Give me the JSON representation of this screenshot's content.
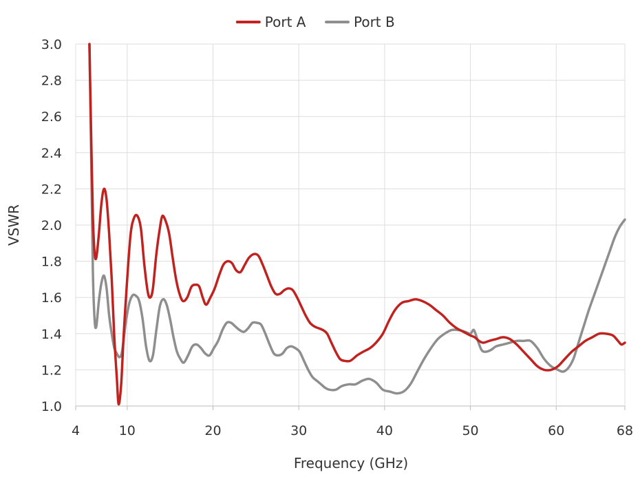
{
  "chart_data": {
    "type": "line",
    "title": "",
    "xlabel": "Frequency (GHz)",
    "ylabel": "VSWR",
    "xlim": [
      4,
      68
    ],
    "ylim": [
      1.0,
      3.0
    ],
    "x_ticks": [
      4,
      10,
      20,
      30,
      40,
      50,
      60,
      68
    ],
    "x_tick_labels": [
      "4",
      "10",
      "20",
      "30",
      "40",
      "50",
      "60",
      "68"
    ],
    "y_ticks": [
      1.0,
      1.2,
      1.4,
      1.6,
      1.8,
      2.0,
      2.2,
      2.4,
      2.6,
      2.8,
      3.0
    ],
    "y_tick_labels": [
      "1.0",
      "1.2",
      "1.4",
      "1.6",
      "1.8",
      "2.0",
      "2.2",
      "2.4",
      "2.6",
      "2.8",
      "3.0"
    ],
    "grid": true,
    "legend_position": "top-center",
    "series": [
      {
        "name": "Port A",
        "color": "#c0221f",
        "points": [
          [
            5.6,
            3.0
          ],
          [
            5.8,
            2.5
          ],
          [
            6.0,
            2.05
          ],
          [
            6.2,
            1.85
          ],
          [
            6.4,
            1.82
          ],
          [
            6.7,
            1.95
          ],
          [
            7.0,
            2.12
          ],
          [
            7.3,
            2.2
          ],
          [
            7.6,
            2.14
          ],
          [
            7.9,
            1.95
          ],
          [
            8.2,
            1.7
          ],
          [
            8.5,
            1.38
          ],
          [
            8.8,
            1.15
          ],
          [
            9.0,
            1.01
          ],
          [
            9.3,
            1.12
          ],
          [
            9.6,
            1.4
          ],
          [
            10.0,
            1.7
          ],
          [
            10.4,
            1.95
          ],
          [
            10.8,
            2.04
          ],
          [
            11.2,
            2.05
          ],
          [
            11.6,
            1.98
          ],
          [
            12.0,
            1.78
          ],
          [
            12.4,
            1.63
          ],
          [
            12.7,
            1.6
          ],
          [
            13.0,
            1.65
          ],
          [
            13.4,
            1.84
          ],
          [
            13.8,
            1.98
          ],
          [
            14.1,
            2.05
          ],
          [
            14.5,
            2.02
          ],
          [
            14.9,
            1.95
          ],
          [
            15.3,
            1.82
          ],
          [
            15.7,
            1.7
          ],
          [
            16.1,
            1.62
          ],
          [
            16.5,
            1.58
          ],
          [
            17.0,
            1.6
          ],
          [
            17.5,
            1.66
          ],
          [
            18.0,
            1.67
          ],
          [
            18.4,
            1.66
          ],
          [
            18.8,
            1.6
          ],
          [
            19.2,
            1.56
          ],
          [
            19.7,
            1.6
          ],
          [
            20.2,
            1.65
          ],
          [
            20.7,
            1.72
          ],
          [
            21.2,
            1.78
          ],
          [
            21.7,
            1.8
          ],
          [
            22.2,
            1.79
          ],
          [
            22.7,
            1.75
          ],
          [
            23.2,
            1.74
          ],
          [
            23.7,
            1.78
          ],
          [
            24.2,
            1.82
          ],
          [
            24.8,
            1.84
          ],
          [
            25.3,
            1.83
          ],
          [
            25.8,
            1.78
          ],
          [
            26.3,
            1.72
          ],
          [
            26.8,
            1.66
          ],
          [
            27.3,
            1.62
          ],
          [
            27.8,
            1.62
          ],
          [
            28.3,
            1.64
          ],
          [
            28.8,
            1.65
          ],
          [
            29.3,
            1.64
          ],
          [
            29.8,
            1.6
          ],
          [
            30.3,
            1.55
          ],
          [
            30.8,
            1.5
          ],
          [
            31.3,
            1.46
          ],
          [
            31.8,
            1.44
          ],
          [
            32.3,
            1.43
          ],
          [
            32.8,
            1.42
          ],
          [
            33.3,
            1.4
          ],
          [
            33.8,
            1.35
          ],
          [
            34.3,
            1.3
          ],
          [
            34.8,
            1.26
          ],
          [
            35.3,
            1.25
          ],
          [
            36.0,
            1.25
          ],
          [
            36.8,
            1.28
          ],
          [
            37.5,
            1.3
          ],
          [
            38.3,
            1.32
          ],
          [
            39.0,
            1.35
          ],
          [
            39.8,
            1.4
          ],
          [
            40.5,
            1.47
          ],
          [
            41.2,
            1.53
          ],
          [
            42.0,
            1.57
          ],
          [
            42.8,
            1.58
          ],
          [
            43.6,
            1.59
          ],
          [
            44.4,
            1.58
          ],
          [
            45.2,
            1.56
          ],
          [
            46.0,
            1.53
          ],
          [
            46.8,
            1.5
          ],
          [
            47.6,
            1.46
          ],
          [
            48.4,
            1.43
          ],
          [
            49.2,
            1.41
          ],
          [
            50.0,
            1.39
          ],
          [
            50.5,
            1.38
          ],
          [
            51.0,
            1.36
          ],
          [
            51.5,
            1.35
          ],
          [
            52.2,
            1.36
          ],
          [
            53.0,
            1.37
          ],
          [
            53.8,
            1.38
          ],
          [
            54.6,
            1.37
          ],
          [
            55.4,
            1.34
          ],
          [
            56.2,
            1.3
          ],
          [
            57.0,
            1.26
          ],
          [
            57.8,
            1.22
          ],
          [
            58.6,
            1.2
          ],
          [
            59.4,
            1.2
          ],
          [
            60.2,
            1.22
          ],
          [
            61.0,
            1.26
          ],
          [
            61.8,
            1.3
          ],
          [
            62.6,
            1.33
          ],
          [
            63.4,
            1.36
          ],
          [
            64.2,
            1.38
          ],
          [
            65.0,
            1.4
          ],
          [
            65.8,
            1.4
          ],
          [
            66.6,
            1.39
          ],
          [
            67.2,
            1.36
          ],
          [
            67.6,
            1.34
          ],
          [
            68.0,
            1.35
          ]
        ]
      },
      {
        "name": "Port B",
        "color": "#8e8e8e",
        "points": [
          [
            5.6,
            3.0
          ],
          [
            5.8,
            2.4
          ],
          [
            6.0,
            1.75
          ],
          [
            6.2,
            1.48
          ],
          [
            6.4,
            1.44
          ],
          [
            6.7,
            1.58
          ],
          [
            7.0,
            1.68
          ],
          [
            7.3,
            1.72
          ],
          [
            7.6,
            1.65
          ],
          [
            7.9,
            1.5
          ],
          [
            8.2,
            1.4
          ],
          [
            8.5,
            1.32
          ],
          [
            8.8,
            1.29
          ],
          [
            9.1,
            1.27
          ],
          [
            9.4,
            1.3
          ],
          [
            9.8,
            1.45
          ],
          [
            10.2,
            1.56
          ],
          [
            10.6,
            1.61
          ],
          [
            11.0,
            1.61
          ],
          [
            11.4,
            1.58
          ],
          [
            11.8,
            1.48
          ],
          [
            12.2,
            1.33
          ],
          [
            12.6,
            1.25
          ],
          [
            13.0,
            1.28
          ],
          [
            13.4,
            1.42
          ],
          [
            13.8,
            1.55
          ],
          [
            14.2,
            1.59
          ],
          [
            14.6,
            1.56
          ],
          [
            15.0,
            1.48
          ],
          [
            15.4,
            1.38
          ],
          [
            15.8,
            1.3
          ],
          [
            16.2,
            1.26
          ],
          [
            16.6,
            1.24
          ],
          [
            17.1,
            1.28
          ],
          [
            17.6,
            1.33
          ],
          [
            18.1,
            1.34
          ],
          [
            18.6,
            1.32
          ],
          [
            19.1,
            1.29
          ],
          [
            19.6,
            1.28
          ],
          [
            20.1,
            1.32
          ],
          [
            20.6,
            1.36
          ],
          [
            21.1,
            1.42
          ],
          [
            21.6,
            1.46
          ],
          [
            22.1,
            1.46
          ],
          [
            22.6,
            1.44
          ],
          [
            23.1,
            1.42
          ],
          [
            23.6,
            1.41
          ],
          [
            24.1,
            1.43
          ],
          [
            24.6,
            1.46
          ],
          [
            25.1,
            1.46
          ],
          [
            25.6,
            1.45
          ],
          [
            26.1,
            1.4
          ],
          [
            26.6,
            1.34
          ],
          [
            27.1,
            1.29
          ],
          [
            27.6,
            1.28
          ],
          [
            28.1,
            1.29
          ],
          [
            28.6,
            1.32
          ],
          [
            29.1,
            1.33
          ],
          [
            29.6,
            1.32
          ],
          [
            30.1,
            1.3
          ],
          [
            30.6,
            1.25
          ],
          [
            31.1,
            1.2
          ],
          [
            31.6,
            1.16
          ],
          [
            32.1,
            1.14
          ],
          [
            32.6,
            1.12
          ],
          [
            33.1,
            1.1
          ],
          [
            33.6,
            1.09
          ],
          [
            34.3,
            1.09
          ],
          [
            35.0,
            1.11
          ],
          [
            35.8,
            1.12
          ],
          [
            36.6,
            1.12
          ],
          [
            37.4,
            1.14
          ],
          [
            38.2,
            1.15
          ],
          [
            39.0,
            1.13
          ],
          [
            39.8,
            1.09
          ],
          [
            40.6,
            1.08
          ],
          [
            41.4,
            1.07
          ],
          [
            42.2,
            1.08
          ],
          [
            43.0,
            1.12
          ],
          [
            43.8,
            1.19
          ],
          [
            44.6,
            1.26
          ],
          [
            45.4,
            1.32
          ],
          [
            46.2,
            1.37
          ],
          [
            47.0,
            1.4
          ],
          [
            47.8,
            1.42
          ],
          [
            48.6,
            1.42
          ],
          [
            49.4,
            1.41
          ],
          [
            50.0,
            1.4
          ],
          [
            50.4,
            1.42
          ],
          [
            50.8,
            1.37
          ],
          [
            51.3,
            1.31
          ],
          [
            51.8,
            1.3
          ],
          [
            52.4,
            1.31
          ],
          [
            53.0,
            1.33
          ],
          [
            53.8,
            1.34
          ],
          [
            54.6,
            1.35
          ],
          [
            55.4,
            1.36
          ],
          [
            56.2,
            1.36
          ],
          [
            57.0,
            1.36
          ],
          [
            57.8,
            1.32
          ],
          [
            58.6,
            1.26
          ],
          [
            59.4,
            1.22
          ],
          [
            60.2,
            1.2
          ],
          [
            60.8,
            1.19
          ],
          [
            61.4,
            1.21
          ],
          [
            62.0,
            1.26
          ],
          [
            62.6,
            1.35
          ],
          [
            63.2,
            1.44
          ],
          [
            63.8,
            1.53
          ],
          [
            64.4,
            1.61
          ],
          [
            65.0,
            1.69
          ],
          [
            65.6,
            1.77
          ],
          [
            66.2,
            1.85
          ],
          [
            66.8,
            1.93
          ],
          [
            67.4,
            1.99
          ],
          [
            68.0,
            2.03
          ]
        ]
      }
    ]
  }
}
